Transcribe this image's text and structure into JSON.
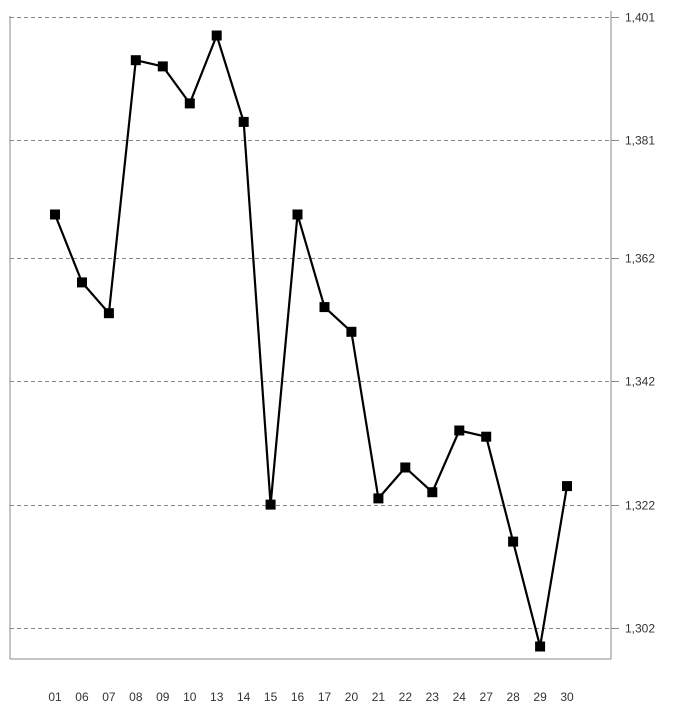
{
  "chart_data": {
    "type": "line",
    "title": "",
    "xlabel": "",
    "ylabel": "",
    "categories": [
      "01",
      "06",
      "07",
      "08",
      "09",
      "10",
      "13",
      "14",
      "15",
      "16",
      "17",
      "20",
      "21",
      "22",
      "23",
      "24",
      "27",
      "28",
      "29",
      "30"
    ],
    "series": [
      {
        "values": [
          1369,
          1358,
          1353,
          1394,
          1393,
          1387,
          1398,
          1384,
          1322,
          1369,
          1354,
          1350,
          1323,
          1328,
          1324,
          1334,
          1333,
          1316,
          1299,
          1325
        ]
      }
    ],
    "y_axis": {
      "position": "right",
      "ticks": [
        1302,
        1322,
        1342,
        1362,
        1381,
        1401
      ],
      "tick_labels": [
        "1,302",
        "1,322",
        "1,342",
        "1,362",
        "1,381",
        "1,401"
      ],
      "ylim": [
        1297,
        1401
      ]
    },
    "grid": {
      "horizontal": true,
      "vertical": false,
      "style": "dashed"
    },
    "legend": "none",
    "colors": {
      "line": "#000000",
      "marker": "#000000",
      "grid": "#888888",
      "frame": "#8a8a8a",
      "text": "#333333"
    },
    "marker": "square"
  }
}
